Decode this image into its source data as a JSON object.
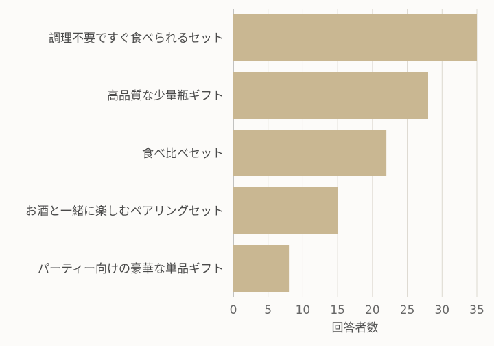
{
  "chart_data": {
    "type": "bar",
    "orientation": "horizontal",
    "categories": [
      "調理不要ですぐ食べられるセット",
      "高品質な少量瓶ギフト",
      "食べ比べセット",
      "お酒と一緒に楽しむペアリングセット",
      "パーティー向けの豪華な単品ギフト"
    ],
    "values": [
      35,
      28,
      22,
      15,
      8
    ],
    "xlabel": "回答者数",
    "ylabel": "",
    "title": "",
    "xlim": [
      0,
      35
    ],
    "xticks": [
      0,
      5,
      10,
      15,
      20,
      25,
      30,
      35
    ],
    "grid": true,
    "bar_color": "#c9b792",
    "background": "#fcfbf9"
  }
}
